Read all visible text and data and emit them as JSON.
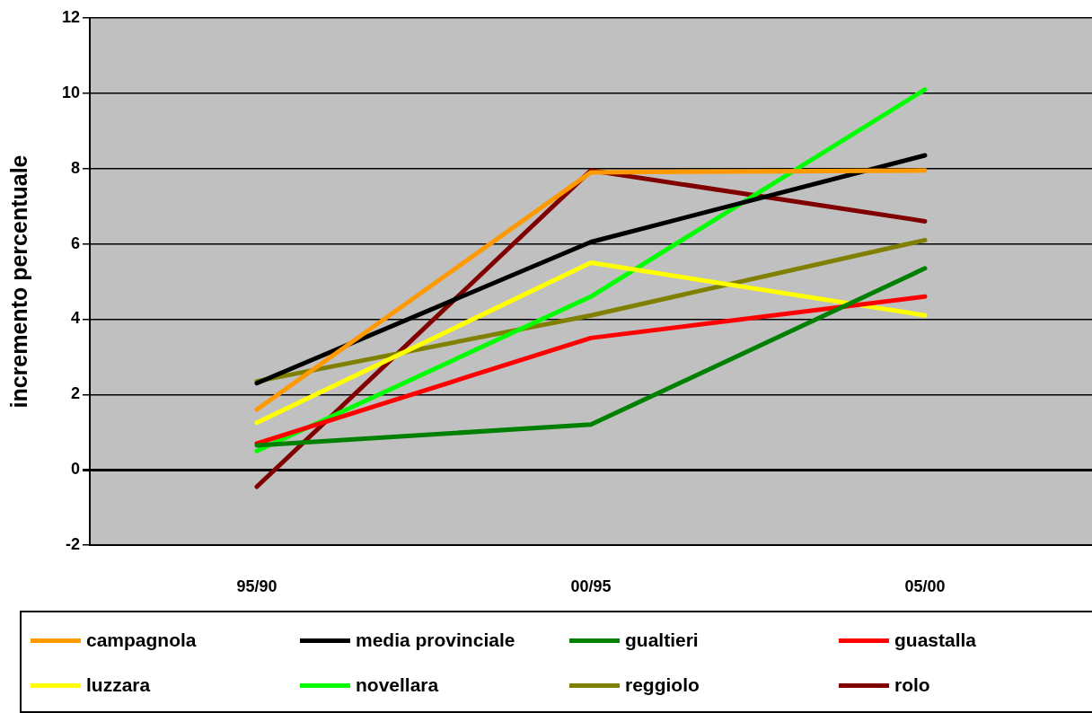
{
  "chart_data": {
    "type": "line",
    "ylabel": "incremento percentuale",
    "categories": [
      "95/90",
      "00/95",
      "05/00"
    ],
    "ylim": [
      -2,
      12
    ],
    "yticks": [
      -2,
      0,
      2,
      4,
      6,
      8,
      10,
      12
    ],
    "grid": "y",
    "legend": "bottom",
    "marker": "none",
    "line_style": "solid",
    "series": [
      {
        "name": "campagnola",
        "color": "#ff9900",
        "values": [
          1.6,
          7.9,
          7.95
        ]
      },
      {
        "name": "media provinciale",
        "color": "#000000",
        "values": [
          2.3,
          6.05,
          8.35
        ]
      },
      {
        "name": "gualtieri",
        "color": "#008000",
        "values": [
          0.65,
          1.2,
          5.35
        ]
      },
      {
        "name": "guastalla",
        "color": "#ff0000",
        "values": [
          0.7,
          3.5,
          4.6
        ]
      },
      {
        "name": "luzzara",
        "color": "#ffff00",
        "values": [
          1.25,
          5.5,
          4.1
        ]
      },
      {
        "name": "novellara",
        "color": "#00ff00",
        "values": [
          0.5,
          4.6,
          10.1
        ]
      },
      {
        "name": "reggiolo",
        "color": "#808000",
        "values": [
          2.35,
          4.1,
          6.1
        ]
      },
      {
        "name": "rolo",
        "color": "#800000",
        "values": [
          -0.45,
          7.95,
          6.6
        ]
      }
    ]
  }
}
